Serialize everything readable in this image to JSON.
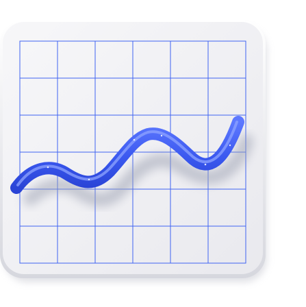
{
  "icon": {
    "name": "line-chart-icon",
    "colors": {
      "tile": "#f1f1f4",
      "tile_edge": "#d9d9e0",
      "grid_line": "#3f63f2",
      "curve": "#3e5cf0",
      "curve_highlight": "#8fa4ff",
      "shadow": "#b9bcc8"
    },
    "grid": {
      "columns": 6,
      "rows": 6
    }
  }
}
